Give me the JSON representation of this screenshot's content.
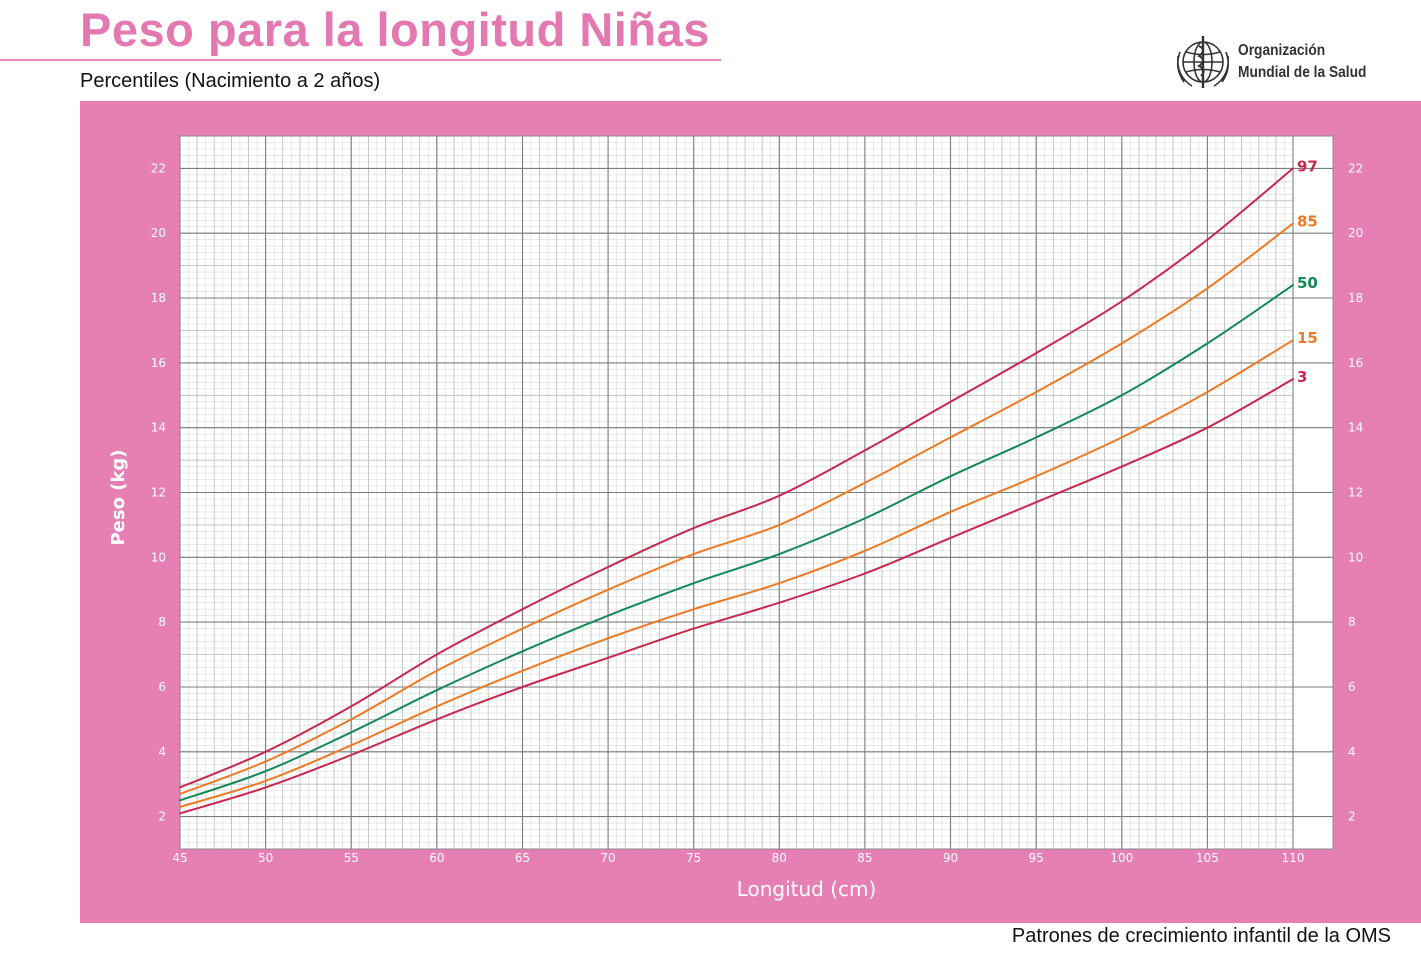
{
  "header": {
    "title": "Peso para la longitud Niñas",
    "subtitle": "Percentiles (Nacimiento a 2 años)"
  },
  "logo": {
    "name": "who-emblem-icon",
    "line1": "Organización",
    "line2": "Mundial de la Salud"
  },
  "footer": {
    "text": "Patrones de crecimiento infantil de la OMS"
  },
  "colors": {
    "panel": "#e67fb4",
    "title": "#e479b2",
    "p97": "#c8284f",
    "p85": "#ec7a25",
    "p50": "#138a56",
    "p15": "#ec7a25",
    "p3": "#c8284f"
  },
  "chart_data": {
    "type": "line",
    "title": "Peso para la longitud Niñas",
    "xlabel": "Longitud (cm)",
    "ylabel": "Peso (kg)",
    "xlim": [
      45,
      110
    ],
    "ylim": [
      1,
      23
    ],
    "xticks": [
      45,
      50,
      55,
      60,
      65,
      70,
      75,
      80,
      85,
      90,
      95,
      100,
      105,
      110
    ],
    "yticks": [
      2,
      4,
      6,
      8,
      10,
      12,
      14,
      16,
      18,
      20,
      22
    ],
    "grid": true,
    "x": [
      45,
      50,
      55,
      60,
      65,
      70,
      75,
      80,
      85,
      90,
      95,
      100,
      105,
      110
    ],
    "series": [
      {
        "name": "97",
        "color": "#c8284f",
        "values": [
          2.9,
          4.0,
          5.4,
          7.0,
          8.4,
          9.7,
          10.9,
          11.9,
          13.3,
          14.8,
          16.3,
          17.9,
          19.8,
          22.0
        ]
      },
      {
        "name": "85",
        "color": "#ec7a25",
        "values": [
          2.7,
          3.7,
          5.0,
          6.5,
          7.8,
          9.0,
          10.1,
          11.0,
          12.3,
          13.7,
          15.1,
          16.6,
          18.3,
          20.3
        ]
      },
      {
        "name": "50",
        "color": "#138a56",
        "values": [
          2.5,
          3.4,
          4.6,
          5.9,
          7.1,
          8.2,
          9.2,
          10.1,
          11.2,
          12.5,
          13.7,
          15.0,
          16.6,
          18.4
        ]
      },
      {
        "name": "15",
        "color": "#ec7a25",
        "values": [
          2.3,
          3.1,
          4.2,
          5.4,
          6.5,
          7.5,
          8.4,
          9.2,
          10.2,
          11.4,
          12.5,
          13.7,
          15.1,
          16.7
        ]
      },
      {
        "name": "3",
        "color": "#c8284f",
        "values": [
          2.1,
          2.9,
          3.9,
          5.0,
          6.0,
          6.9,
          7.8,
          8.6,
          9.5,
          10.6,
          11.7,
          12.8,
          14.0,
          15.5
        ]
      }
    ]
  }
}
